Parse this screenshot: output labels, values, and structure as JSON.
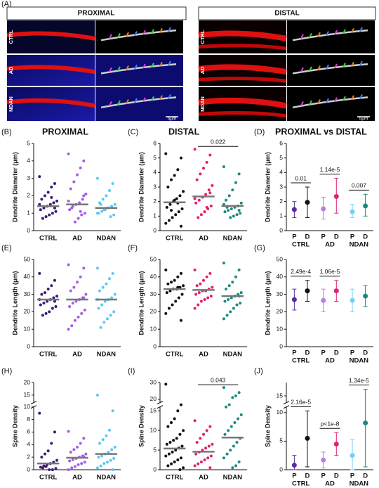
{
  "panel_a": {
    "label": "(A)",
    "proximal": "PROXIMAL",
    "distal": "DISTAL",
    "rows": [
      "CTRL",
      "AD",
      "NDAN"
    ],
    "scale_bar": "5μm"
  },
  "chart_data": [
    {
      "type": "strip",
      "panel_label": "(B)",
      "title": "PROXIMAL",
      "y_label": "Dendrite Diameter (μm)",
      "categories": [
        "CTRL",
        "AD",
        "NDAN"
      ],
      "ylim": [
        0,
        5
      ],
      "yticks": [
        0,
        1,
        2,
        3,
        4,
        5
      ],
      "groups": [
        {
          "color": "#3d1a78",
          "values": [
            3.1,
            2.7,
            2.5,
            2.2,
            2.0,
            1.8,
            1.7,
            1.6,
            1.5,
            1.4,
            1.3,
            1.2,
            1.1,
            1.0,
            0.9,
            0.8,
            0.7,
            1.5,
            1.3,
            1.9
          ]
        },
        {
          "color": "#a45ee5",
          "values": [
            4.4,
            4.0,
            3.6,
            3.2,
            2.8,
            2.4,
            2.1,
            1.8,
            1.6,
            1.5,
            1.4,
            1.2,
            1.0,
            0.9,
            0.7,
            0.5,
            1.3,
            1.7,
            2.0,
            1.1
          ]
        },
        {
          "color": "#5fc7f0",
          "values": [
            3.0,
            2.7,
            2.3,
            2.0,
            1.8,
            1.6,
            1.5,
            1.4,
            1.3,
            1.2,
            1.1,
            1.0,
            0.9,
            0.8,
            1.3,
            1.2,
            1.5,
            1.0
          ]
        }
      ],
      "means": [
        1.4,
        1.5,
        1.3
      ]
    },
    {
      "type": "strip",
      "panel_label": "(C)",
      "title": "DISTAL",
      "y_label": "Dendrite Diameter (μm)",
      "categories": [
        "CTRL",
        "AD",
        "NDAN"
      ],
      "ylim": [
        0,
        6
      ],
      "yticks": [
        0,
        1,
        2,
        3,
        4,
        5,
        6
      ],
      "groups": [
        {
          "color": "#111111",
          "values": [
            5.3,
            5.0,
            4.2,
            3.8,
            3.5,
            3.0,
            2.7,
            2.4,
            2.2,
            2.0,
            1.8,
            1.6,
            1.5,
            1.3,
            1.1,
            0.9,
            0.7,
            0.5,
            0.3,
            1.9,
            2.1,
            1.4
          ]
        },
        {
          "color": "#e0226e",
          "values": [
            5.6,
            5.2,
            4.7,
            4.3,
            3.9,
            3.5,
            3.1,
            2.8,
            2.5,
            2.3,
            2.1,
            1.9,
            1.7,
            1.5,
            1.3,
            1.1,
            0.9,
            2.2,
            2.6,
            1.6
          ]
        },
        {
          "color": "#1a8a80",
          "values": [
            4.4,
            3.9,
            3.3,
            2.8,
            2.4,
            2.1,
            1.9,
            1.7,
            1.6,
            1.5,
            1.4,
            1.3,
            1.2,
            1.1,
            1.0,
            0.9,
            1.6,
            1.8,
            1.4
          ]
        }
      ],
      "means": [
        1.95,
        2.35,
        1.7
      ],
      "annotations": [
        {
          "text": "0.022",
          "categories": [
            "AD",
            "NDAN"
          ]
        }
      ]
    },
    {
      "type": "mean_range",
      "panel_label": "(D)",
      "title": "PROXIMAL vs DISTAL",
      "y_label": "Dendrite Diameter (μm)",
      "categories": [
        "CTRL",
        "AD",
        "NDAN"
      ],
      "ylim": [
        0,
        6
      ],
      "yticks": [
        0,
        1,
        2,
        3,
        4,
        5,
        6
      ],
      "points": [
        [
          {
            "label": "P",
            "value": 1.45,
            "low": 0.9,
            "high": 2.0,
            "color": "#5a2ca0"
          },
          {
            "label": "D",
            "value": 1.95,
            "low": 0.9,
            "high": 3.0,
            "color": "#111111"
          }
        ],
        [
          {
            "label": "P",
            "value": 1.5,
            "low": 0.8,
            "high": 2.3,
            "color": "#b57ee8"
          },
          {
            "label": "D",
            "value": 2.35,
            "low": 1.2,
            "high": 3.6,
            "color": "#e0226e"
          }
        ],
        [
          {
            "label": "P",
            "value": 1.3,
            "low": 0.9,
            "high": 1.8,
            "color": "#76d0f0"
          },
          {
            "label": "D",
            "value": 1.7,
            "low": 1.0,
            "high": 2.5,
            "color": "#1a8a80"
          }
        ]
      ],
      "annotations": [
        {
          "text": "0.01",
          "categories": [
            "CTRL"
          ]
        },
        {
          "text": "1.14e-5",
          "categories": [
            "AD"
          ]
        },
        {
          "text": "0.007",
          "categories": [
            "NDAN"
          ]
        }
      ]
    },
    {
      "type": "strip",
      "panel_label": "(E)",
      "y_label": "Dendrite Length (μm)",
      "categories": [
        "CTRL",
        "AD",
        "NDAN"
      ],
      "ylim": [
        0,
        50
      ],
      "yticks": [
        0,
        10,
        20,
        30,
        40,
        50
      ],
      "groups": [
        {
          "color": "#3d1a78",
          "values": [
            42,
            38,
            35,
            33,
            31,
            30,
            29,
            28,
            27,
            26,
            25,
            24,
            23,
            22,
            20,
            19,
            18,
            27,
            26
          ]
        },
        {
          "color": "#a45ee5",
          "values": [
            47,
            45,
            40,
            37,
            34,
            32,
            30,
            28,
            27,
            26,
            25,
            23,
            21,
            19,
            17,
            15,
            12,
            10,
            28
          ]
        },
        {
          "color": "#5fc7f0",
          "values": [
            45,
            42,
            39,
            36,
            34,
            32,
            30,
            28,
            27,
            26,
            24,
            22,
            20,
            18,
            16,
            14,
            11,
            27
          ]
        }
      ],
      "means": [
        27,
        27,
        27
      ]
    },
    {
      "type": "strip",
      "panel_label": "(F)",
      "y_label": "Dendrite Length (μm)",
      "categories": [
        "CTRL",
        "AD",
        "NDAN"
      ],
      "ylim": [
        0,
        50
      ],
      "yticks": [
        0,
        10,
        20,
        30,
        40,
        50
      ],
      "groups": [
        {
          "color": "#111111",
          "values": [
            44,
            42,
            40,
            38,
            37,
            36,
            35,
            34,
            33,
            33,
            32,
            31,
            30,
            28,
            26,
            24,
            22,
            19,
            15,
            34
          ]
        },
        {
          "color": "#e0226e",
          "values": [
            44,
            42,
            40,
            38,
            36,
            35,
            34,
            33,
            32,
            32,
            31,
            30,
            29,
            28,
            27,
            26,
            24,
            22
          ]
        },
        {
          "color": "#1a8a80",
          "values": [
            48,
            44,
            40,
            37,
            35,
            33,
            31,
            30,
            29,
            28,
            27,
            26,
            25,
            24,
            22,
            20,
            18,
            16,
            29
          ]
        }
      ],
      "means": [
        33,
        32.5,
        29
      ]
    },
    {
      "type": "mean_range",
      "panel_label": "(G)",
      "y_label": "Dendrite Length (μm)",
      "categories": [
        "CTRL",
        "AD",
        "NDAN"
      ],
      "ylim": [
        0,
        50
      ],
      "yticks": [
        0,
        10,
        20,
        30,
        40,
        50
      ],
      "points": [
        [
          {
            "label": "P",
            "value": 27,
            "low": 21,
            "high": 33,
            "color": "#5a2ca0"
          },
          {
            "label": "D",
            "value": 32,
            "low": 26,
            "high": 38,
            "color": "#111111"
          }
        ],
        [
          {
            "label": "P",
            "value": 26.5,
            "low": 20,
            "high": 33,
            "color": "#b57ee8"
          },
          {
            "label": "D",
            "value": 32,
            "low": 26,
            "high": 38,
            "color": "#e0226e"
          }
        ],
        [
          {
            "label": "P",
            "value": 26.5,
            "low": 20,
            "high": 33,
            "color": "#76d0f0"
          },
          {
            "label": "D",
            "value": 29,
            "low": 23,
            "high": 35,
            "color": "#1a8a80"
          }
        ]
      ],
      "annotations": [
        {
          "text": "2.49e-4",
          "categories": [
            "CTRL"
          ]
        },
        {
          "text": "1.06e-5",
          "categories": [
            "AD"
          ]
        }
      ]
    },
    {
      "type": "strip",
      "panel_label": "(H)",
      "y_label": "Spine  Density",
      "categories": [
        "CTRL",
        "AD",
        "NDAN"
      ],
      "ylim": [
        0,
        20
      ],
      "y_break": [
        10,
        12
      ],
      "yticks": [
        0,
        2,
        4,
        6,
        8,
        10,
        15,
        20
      ],
      "groups": [
        {
          "color": "#3d1a78",
          "values": [
            9,
            6,
            4.2,
            3,
            2.5,
            2,
            1.5,
            1.2,
            1,
            0.8,
            0.6,
            0.4,
            0.2,
            0,
            0,
            0.5,
            0.3
          ]
        },
        {
          "color": "#a45ee5",
          "values": [
            6.1,
            5,
            4.2,
            3.6,
            3.2,
            2.8,
            2.5,
            2.2,
            2,
            1.8,
            1.6,
            1.4,
            1.2,
            1,
            0.8,
            0.5,
            0.3,
            0,
            2.1
          ]
        },
        {
          "color": "#5fc7f0",
          "values": [
            15,
            9.4,
            6.3,
            5.4,
            4.8,
            4.2,
            3.6,
            3.2,
            2.8,
            2.5,
            2.2,
            2,
            1.8,
            1.5,
            1.2,
            1,
            0.6,
            0.3,
            0
          ]
        }
      ],
      "means": [
        1.0,
        1.9,
        2.5
      ]
    },
    {
      "type": "strip",
      "panel_label": "(I)",
      "y_label": "Spine Density",
      "categories": [
        "CTRL",
        "AD",
        "NDAN"
      ],
      "ylim": [
        0,
        30
      ],
      "y_break": [
        16,
        18
      ],
      "yticks": [
        0,
        5,
        10,
        15,
        20,
        30
      ],
      "groups": [
        {
          "color": "#111111",
          "values": [
            29,
            17,
            15,
            13,
            12,
            11,
            10,
            9,
            8,
            7.5,
            7,
            6.5,
            6,
            5.5,
            5,
            4.5,
            4,
            3.5,
            3,
            2.5,
            2,
            1.5,
            1,
            0.5,
            0
          ]
        },
        {
          "color": "#e0226e",
          "values": [
            12.5,
            11,
            10,
            9,
            8,
            7,
            6.5,
            6,
            5.5,
            5,
            4.5,
            4,
            3.5,
            3,
            2.5,
            2,
            1.5,
            1,
            0.5
          ]
        },
        {
          "color": "#1a8a80",
          "values": [
            27,
            24,
            22,
            21,
            17,
            16,
            14,
            13,
            12,
            11,
            10,
            9,
            8,
            7,
            6,
            5,
            4,
            3,
            2,
            1,
            0.5
          ]
        }
      ],
      "means": [
        5.4,
        4.6,
        8.2
      ],
      "annotations": [
        {
          "text": "0.043",
          "categories": [
            "AD",
            "NDAN"
          ]
        }
      ]
    },
    {
      "type": "mean_range",
      "panel_label": "(J)",
      "y_label": "Spine Density",
      "categories": [
        "CTRL",
        "AD",
        "NDAN"
      ],
      "ylim": [
        0,
        17
      ],
      "y_break": [
        11,
        14
      ],
      "yticks": [
        0,
        5,
        10,
        15
      ],
      "points": [
        [
          {
            "label": "P",
            "value": 0.8,
            "low": 0,
            "high": 2.5,
            "color": "#5a2ca0"
          },
          {
            "label": "D",
            "value": 5.5,
            "low": 0.5,
            "high": 10.3,
            "color": "#111111"
          }
        ],
        [
          {
            "label": "P",
            "value": 1.7,
            "low": 0.3,
            "high": 3.1,
            "color": "#b57ee8"
          },
          {
            "label": "D",
            "value": 4.5,
            "low": 2.5,
            "high": 6.5,
            "color": "#e0226e"
          }
        ],
        [
          {
            "label": "P",
            "value": 2.5,
            "low": 0,
            "high": 5.3,
            "color": "#76d0f0"
          },
          {
            "label": "D",
            "value": 8.2,
            "low": 0.5,
            "high": 16,
            "color": "#1a8a80"
          }
        ]
      ],
      "annotations": [
        {
          "text": "2.16e-5",
          "categories": [
            "CTRL"
          ]
        },
        {
          "text": "p<1e-8",
          "categories": [
            "AD"
          ]
        },
        {
          "text": "1.34e-5",
          "categories": [
            "NDAN"
          ]
        }
      ]
    }
  ]
}
